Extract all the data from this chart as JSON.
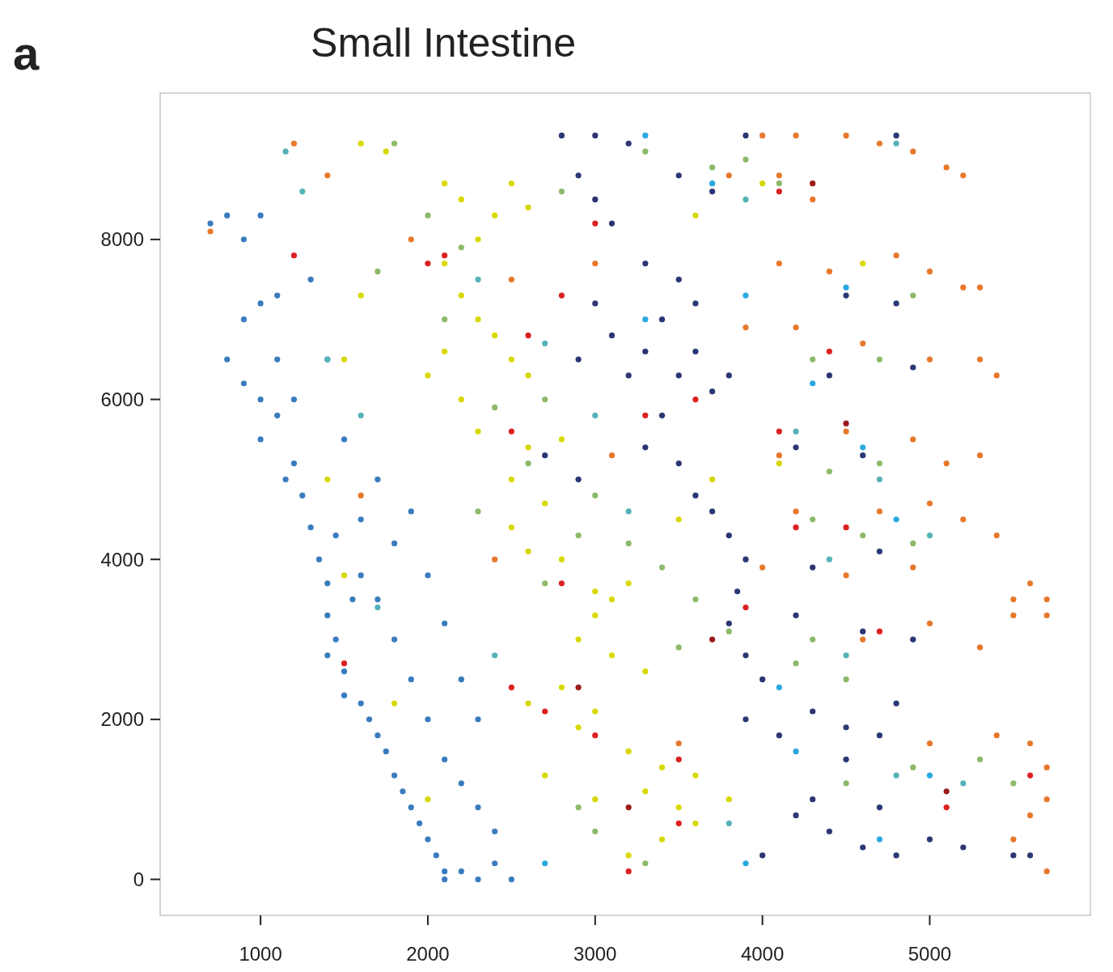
{
  "chart_data": {
    "type": "scatter",
    "title": "Small Intestine",
    "annotations": [
      "a"
    ],
    "xlim": [
      400,
      5960
    ],
    "ylim": [
      -450,
      9830
    ],
    "xticks": [
      1000,
      2000,
      3000,
      4000,
      5000
    ],
    "yticks": [
      0,
      2000,
      4000,
      6000,
      8000
    ],
    "grid": false,
    "marker": "circle",
    "series": [
      {
        "color": "#3a7bbf",
        "x": [
          700,
          800,
          900,
          1000,
          1100,
          900,
          1000,
          800,
          900,
          1000,
          1100,
          1100,
          1200,
          1150,
          1250,
          1300,
          1350,
          1400,
          1400,
          1450,
          1400,
          1500,
          1500,
          1600,
          1650,
          1700,
          1750,
          1800,
          1850,
          1900,
          1950,
          2000,
          2050,
          2100,
          2100,
          2200,
          2300,
          2400,
          2500,
          1600,
          1700,
          1500,
          1400,
          1300,
          1600,
          1700,
          1800,
          1900,
          2000,
          2100,
          2200,
          2300,
          2400,
          1800,
          1900,
          2000,
          2100,
          2200,
          2300,
          1550,
          1450,
          1200,
          1000
        ],
        "values": [
          8200,
          8300,
          8000,
          8300,
          7300,
          7000,
          7200,
          6500,
          6200,
          6000,
          6500,
          5800,
          5200,
          5000,
          4800,
          4400,
          4000,
          3700,
          3300,
          3000,
          2800,
          2600,
          2300,
          2200,
          2000,
          1800,
          1600,
          1300,
          1100,
          900,
          700,
          500,
          300,
          100,
          0,
          100,
          0,
          200,
          0,
          4500,
          5000,
          5500,
          6500,
          7500,
          3800,
          3500,
          3000,
          2500,
          2000,
          1500,
          1200,
          900,
          600,
          4200,
          4600,
          3800,
          3200,
          2500,
          2000,
          3500,
          4300,
          6000,
          5500
        ]
      },
      {
        "color": "#2b3674",
        "x": [
          2800,
          3000,
          3200,
          2900,
          3000,
          3100,
          3300,
          3500,
          3600,
          3400,
          3300,
          3500,
          3700,
          3200,
          3100,
          2900,
          3000,
          3600,
          3800,
          3400,
          3300,
          3500,
          3600,
          3700,
          3800,
          3900,
          3850,
          3800,
          3900,
          4000,
          3900,
          4100,
          4300,
          4500,
          4700,
          4200,
          4400,
          4600,
          4800,
          5000,
          4000,
          4300,
          4700,
          5200,
          5500,
          5600,
          4500,
          4800,
          4200,
          4600,
          4900,
          4300,
          4700,
          4200,
          4600,
          4500,
          4800,
          4400,
          4900,
          3500,
          3700,
          3900,
          4800,
          2700,
          2900
        ],
        "values": [
          9300,
          9300,
          9200,
          8800,
          8500,
          8200,
          7700,
          7500,
          7200,
          7000,
          6600,
          6300,
          6100,
          6300,
          6800,
          6500,
          7200,
          6600,
          6300,
          5800,
          5400,
          5200,
          4800,
          4600,
          4300,
          4000,
          3600,
          3200,
          2800,
          2500,
          2000,
          1800,
          2100,
          1900,
          1800,
          800,
          600,
          400,
          300,
          500,
          300,
          1000,
          900,
          400,
          300,
          300,
          1500,
          2200,
          3300,
          3100,
          3000,
          3900,
          4100,
          5400,
          5300,
          7300,
          7200,
          6300,
          6400,
          8800,
          8600,
          9300,
          9300,
          5300,
          5000
        ]
      },
      {
        "color": "#d8d800",
        "x": [
          1600,
          1750,
          2100,
          2200,
          2400,
          2300,
          2500,
          2600,
          2100,
          2200,
          2300,
          2400,
          2100,
          2000,
          2200,
          2500,
          2600,
          2300,
          2600,
          2800,
          2500,
          2700,
          2500,
          2600,
          2800,
          3000,
          3100,
          3200,
          3000,
          2900,
          3100,
          3300,
          2800,
          2600,
          2900,
          3000,
          3200,
          3400,
          3300,
          3500,
          3600,
          3400,
          3200,
          3600,
          3800,
          3000,
          2700,
          1600,
          1500,
          1400,
          1500,
          1800,
          2000,
          3700,
          3500,
          4100,
          4600,
          4000,
          3600
        ],
        "values": [
          9200,
          9100,
          8700,
          8500,
          8300,
          8000,
          8700,
          8400,
          7700,
          7300,
          7000,
          6800,
          6600,
          6300,
          6000,
          6500,
          6300,
          5600,
          5400,
          5500,
          5000,
          4700,
          4400,
          4100,
          4000,
          3600,
          3500,
          3700,
          3300,
          3000,
          2800,
          2600,
          2400,
          2200,
          1900,
          2100,
          1600,
          1400,
          1100,
          900,
          700,
          500,
          300,
          1300,
          1000,
          1000,
          1300,
          7300,
          6500,
          5000,
          3800,
          2200,
          1000,
          5000,
          4500,
          5200,
          7700,
          8700,
          8300
        ]
      },
      {
        "color": "#e8782c",
        "x": [
          4500,
          4700,
          4900,
          5100,
          5200,
          4000,
          4200,
          4300,
          4100,
          3800,
          4100,
          4400,
          4800,
          5000,
          5200,
          5300,
          3900,
          4200,
          4600,
          5000,
          5300,
          5400,
          4100,
          4500,
          4900,
          5300,
          5100,
          4200,
          4700,
          5000,
          5200,
          5400,
          4000,
          4500,
          4900,
          5500,
          5600,
          5700,
          5500,
          5700,
          4600,
          5000,
          5300,
          5000,
          5400,
          5600,
          5700,
          5700,
          5600,
          5700,
          5500,
          3100,
          2400,
          1900,
          1400,
          700,
          1200,
          2500,
          3000,
          1600,
          3500
        ],
        "values": [
          9300,
          9200,
          9100,
          8900,
          8800,
          9300,
          9300,
          8500,
          8800,
          8800,
          7700,
          7600,
          7800,
          7600,
          7400,
          7400,
          6900,
          6900,
          6700,
          6500,
          6500,
          6300,
          5300,
          5600,
          5500,
          5300,
          5200,
          4600,
          4600,
          4700,
          4500,
          4300,
          3900,
          3800,
          3900,
          3500,
          3700,
          3500,
          3300,
          3300,
          3000,
          3200,
          2900,
          1700,
          1800,
          1700,
          1400,
          1000,
          800,
          100,
          500,
          5300,
          4000,
          8000,
          8800,
          8100,
          9200,
          7500,
          7700,
          4800,
          1700
        ]
      },
      {
        "color": "#8cba6a",
        "x": [
          1800,
          2000,
          2200,
          2100,
          2400,
          2700,
          2600,
          3000,
          2900,
          2700,
          3200,
          3400,
          3600,
          3800,
          4200,
          4500,
          4300,
          4600,
          4900,
          4400,
          4700,
          4300,
          4700,
          4900,
          4100,
          3700,
          3300,
          3900,
          3000,
          2900,
          3300,
          4500,
          4900,
          5300,
          5500,
          4300,
          2800,
          1700,
          2300,
          3500
        ],
        "values": [
          9200,
          8300,
          7900,
          7000,
          5900,
          6000,
          5200,
          4800,
          4300,
          3700,
          4200,
          3900,
          3500,
          3100,
          2700,
          2500,
          4500,
          4300,
          4200,
          5100,
          5200,
          6500,
          6500,
          7300,
          8700,
          8900,
          9100,
          9000,
          600,
          900,
          200,
          1200,
          1400,
          1500,
          1200,
          3000,
          8600,
          7600,
          4600,
          2900
        ]
      },
      {
        "color": "#56b2b8",
        "x": [
          1150,
          1250,
          1400,
          1600,
          1700,
          2300,
          2700,
          3000,
          3200,
          4200,
          4700,
          5000,
          4400,
          4500,
          4800,
          5200,
          4800,
          3900,
          2400,
          3800
        ],
        "values": [
          9100,
          8600,
          6500,
          5800,
          3400,
          7500,
          6700,
          5800,
          4600,
          5600,
          5000,
          4300,
          4000,
          2800,
          1300,
          1200,
          9200,
          8500,
          2800,
          700
        ]
      },
      {
        "color": "#2aa8e0",
        "x": [
          3300,
          3700,
          4500,
          3900,
          4300,
          4600,
          4800,
          4100,
          4200,
          5000,
          4700,
          3900,
          2700,
          3300
        ],
        "values": [
          9300,
          8700,
          7400,
          7300,
          6200,
          5400,
          4500,
          2400,
          1600,
          1300,
          500,
          200,
          200,
          7000
        ]
      },
      {
        "color": "#dd2020",
        "x": [
          1200,
          2000,
          2100,
          2600,
          2800,
          2500,
          3300,
          3600,
          2800,
          2500,
          2700,
          3000,
          3500,
          3500,
          3200,
          4200,
          4500,
          4100,
          4700,
          5100,
          5600,
          4400,
          4100,
          3000,
          1500,
          3900
        ],
        "values": [
          7800,
          7700,
          7800,
          6800,
          7300,
          5600,
          5800,
          6000,
          3700,
          2400,
          2100,
          1800,
          1500,
          700,
          100,
          4400,
          4400,
          5600,
          3100,
          900,
          1300,
          6600,
          8600,
          8200,
          2700,
          3400
        ]
      },
      {
        "color": "#9b1b1b",
        "x": [
          2900,
          3200,
          5100,
          4300,
          3700,
          4500
        ],
        "values": [
          2400,
          900,
          1100,
          8700,
          3000,
          5700
        ]
      }
    ]
  }
}
